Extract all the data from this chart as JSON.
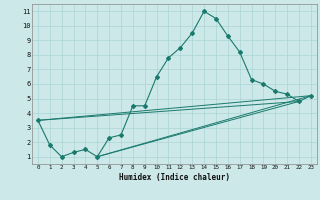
{
  "xlabel": "Humidex (Indice chaleur)",
  "bg_color": "#cce8e8",
  "line_color": "#1a7a6e",
  "grid_color": "#aad4d4",
  "xlim": [
    -0.5,
    23.5
  ],
  "ylim": [
    0.5,
    11.5
  ],
  "xticks": [
    0,
    1,
    2,
    3,
    4,
    5,
    6,
    7,
    8,
    9,
    10,
    11,
    12,
    13,
    14,
    15,
    16,
    17,
    18,
    19,
    20,
    21,
    22,
    23
  ],
  "yticks": [
    1,
    2,
    3,
    4,
    5,
    6,
    7,
    8,
    9,
    10,
    11
  ],
  "series": [
    [
      0,
      3.5
    ],
    [
      1,
      1.8
    ],
    [
      2,
      1.0
    ],
    [
      3,
      1.3
    ],
    [
      4,
      1.5
    ],
    [
      5,
      1.0
    ],
    [
      6,
      2.3
    ],
    [
      7,
      2.5
    ],
    [
      8,
      4.5
    ],
    [
      9,
      4.5
    ],
    [
      10,
      6.5
    ],
    [
      11,
      7.8
    ],
    [
      12,
      8.5
    ],
    [
      13,
      9.5
    ],
    [
      14,
      11.0
    ],
    [
      15,
      10.5
    ],
    [
      16,
      9.3
    ],
    [
      17,
      8.2
    ],
    [
      18,
      6.3
    ],
    [
      19,
      6.0
    ],
    [
      20,
      5.5
    ],
    [
      21,
      5.3
    ],
    [
      22,
      4.8
    ],
    [
      23,
      5.2
    ]
  ],
  "straight_lines": [
    [
      [
        0,
        3.5
      ],
      [
        22,
        4.8
      ]
    ],
    [
      [
        0,
        3.5
      ],
      [
        23,
        5.2
      ]
    ],
    [
      [
        5,
        1.0
      ],
      [
        22,
        4.8
      ]
    ],
    [
      [
        5,
        1.0
      ],
      [
        23,
        5.2
      ]
    ]
  ]
}
